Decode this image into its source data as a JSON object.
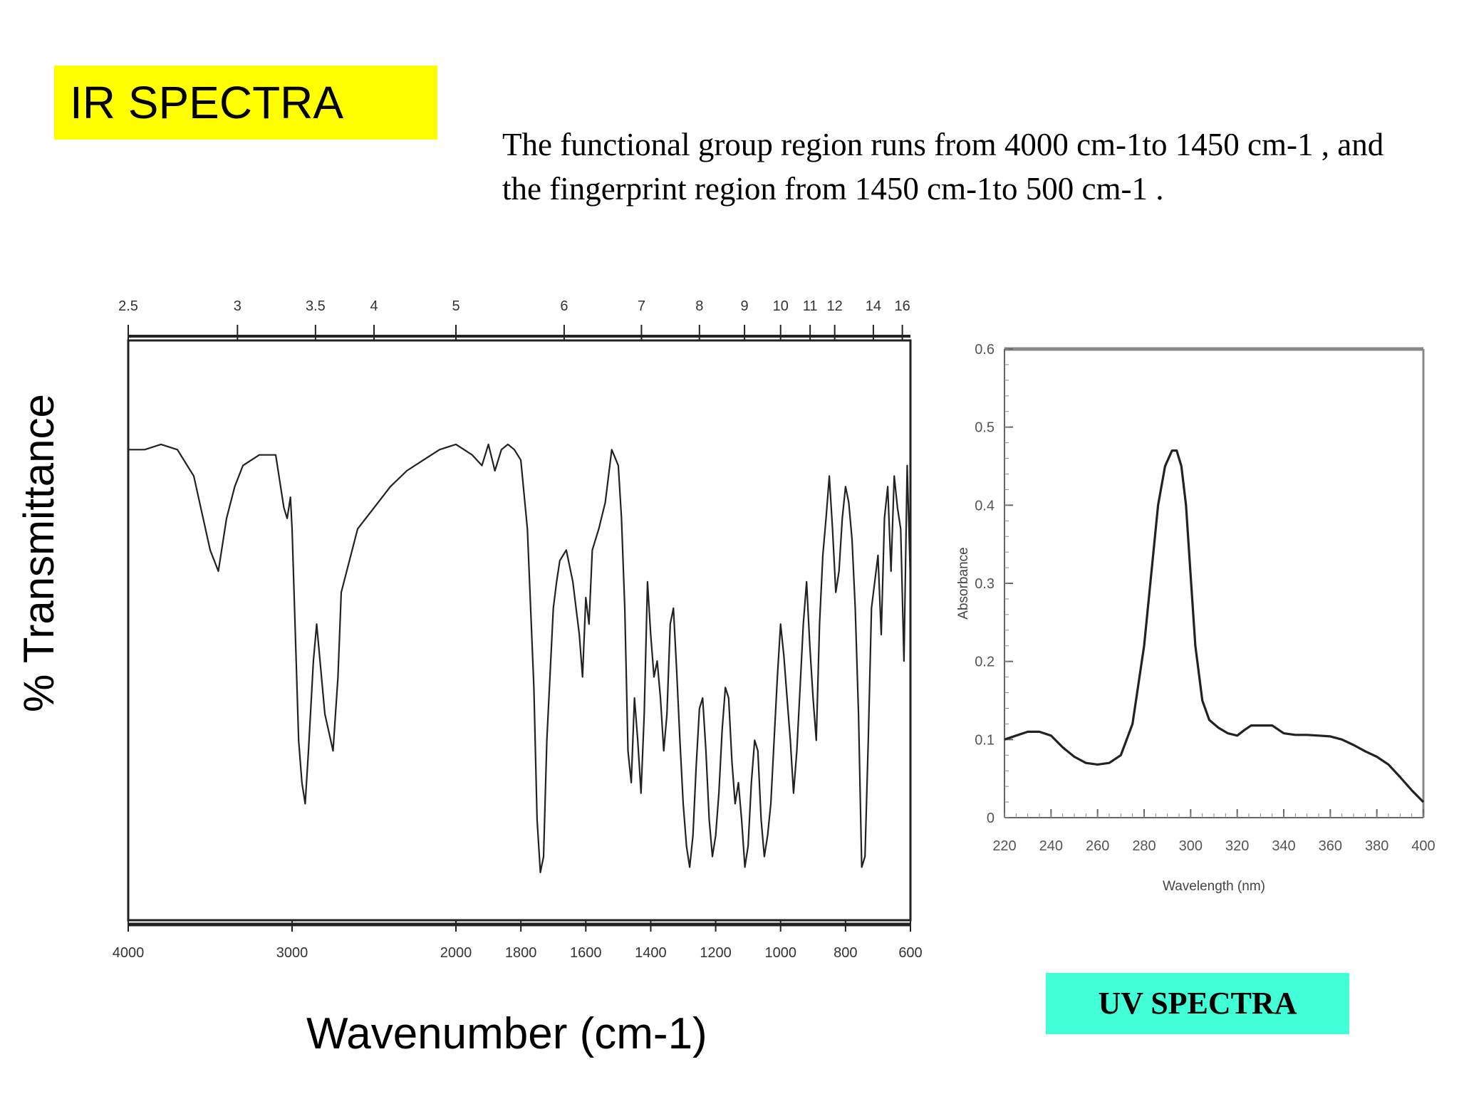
{
  "header": {
    "title": "IR SPECTRA"
  },
  "description": "The functional group region runs from 4000 cm-1to 1450 cm-1 , and the fingerprint region from 1450 cm-1to 500 cm-1 .",
  "uv_label": "UV SPECTRA",
  "colors": {
    "title_bg": "#ffff00",
    "uv_label_bg": "#41ffd6",
    "trace": "#222222"
  },
  "chart_data": [
    {
      "type": "line",
      "title": "",
      "xlabel": "Wavenumber (cm-1)",
      "ylabel": "% Transmittance",
      "x_ticks": [
        "4000",
        "3000",
        "2000",
        "1800",
        "1600",
        "1400",
        "1200",
        "1000",
        "800",
        "600"
      ],
      "top_ticks": [
        "2.5",
        "3",
        "3.5",
        "4",
        "5",
        "6",
        "7",
        "8",
        "9",
        "10",
        "11",
        "12",
        "14",
        "16"
      ],
      "grid": false,
      "series": [
        {
          "x": [
            4000,
            3900,
            3800,
            3700,
            3600,
            3500,
            3450,
            3400,
            3350,
            3300,
            3200,
            3100,
            3050,
            3030,
            3010,
            3000,
            2980,
            2960,
            2940,
            2920,
            2900,
            2870,
            2850,
            2800,
            2750,
            2720,
            2700,
            2650,
            2600,
            2500,
            2400,
            2300,
            2200,
            2100,
            2000,
            1950,
            1920,
            1900,
            1880,
            1860,
            1840,
            1820,
            1800,
            1780,
            1760,
            1750,
            1740,
            1730,
            1720,
            1700,
            1690,
            1680,
            1660,
            1640,
            1630,
            1620,
            1610,
            1600,
            1590,
            1580,
            1560,
            1540,
            1520,
            1500,
            1490,
            1480,
            1470,
            1460,
            1450,
            1440,
            1430,
            1420,
            1410,
            1400,
            1390,
            1380,
            1370,
            1360,
            1350,
            1340,
            1330,
            1320,
            1310,
            1300,
            1290,
            1280,
            1270,
            1260,
            1250,
            1240,
            1230,
            1220,
            1210,
            1200,
            1190,
            1180,
            1170,
            1160,
            1150,
            1140,
            1130,
            1120,
            1110,
            1100,
            1090,
            1080,
            1070,
            1060,
            1050,
            1040,
            1030,
            1020,
            1010,
            1000,
            990,
            980,
            970,
            960,
            950,
            940,
            930,
            920,
            910,
            900,
            890,
            880,
            870,
            860,
            850,
            840,
            830,
            820,
            810,
            800,
            790,
            780,
            770,
            760,
            750,
            740,
            730,
            720,
            710,
            700,
            690,
            680,
            670,
            660,
            650,
            640,
            630,
            620,
            610,
            600
          ],
          "y": [
            85,
            85,
            86,
            85,
            80,
            66,
            62,
            72,
            78,
            82,
            84,
            84,
            74,
            72,
            76,
            70,
            50,
            30,
            22,
            18,
            28,
            45,
            52,
            35,
            28,
            42,
            58,
            64,
            70,
            74,
            78,
            81,
            83,
            85,
            86,
            84,
            82,
            86,
            81,
            85,
            86,
            85,
            83,
            70,
            40,
            15,
            5,
            8,
            30,
            55,
            60,
            64,
            66,
            60,
            55,
            50,
            42,
            57,
            52,
            66,
            70,
            75,
            85,
            82,
            72,
            55,
            28,
            22,
            38,
            30,
            20,
            35,
            60,
            50,
            42,
            45,
            38,
            28,
            35,
            52,
            55,
            43,
            30,
            18,
            10,
            6,
            12,
            25,
            36,
            38,
            28,
            15,
            8,
            12,
            20,
            32,
            40,
            38,
            26,
            18,
            22,
            15,
            6,
            10,
            22,
            30,
            28,
            15,
            8,
            12,
            18,
            30,
            42,
            52,
            46,
            38,
            30,
            20,
            28,
            40,
            52,
            60,
            48,
            38,
            30,
            52,
            65,
            72,
            80,
            70,
            58,
            62,
            72,
            78,
            75,
            68,
            55,
            35,
            6,
            8,
            30,
            55,
            60,
            65,
            50,
            72,
            78,
            62,
            80,
            74,
            70,
            45,
            82,
            60
          ],
          "ylim": [
            0,
            100
          ]
        }
      ]
    },
    {
      "type": "line",
      "title": "",
      "xlabel": "Wavelength (nm)",
      "ylabel": "Absorbance",
      "xlim": [
        220,
        400
      ],
      "ylim": [
        0,
        0.6
      ],
      "x_ticks": [
        "220",
        "240",
        "260",
        "280",
        "300",
        "320",
        "340",
        "360",
        "380",
        "400"
      ],
      "y_ticks": [
        "0",
        "0.1",
        "0.2",
        "0.3",
        "0.4",
        "0.5",
        "0.6"
      ],
      "grid": false,
      "series": [
        {
          "x": [
            220,
            225,
            230,
            235,
            240,
            245,
            250,
            255,
            260,
            265,
            270,
            275,
            280,
            283,
            286,
            289,
            292,
            294,
            296,
            298,
            300,
            302,
            305,
            308,
            312,
            316,
            320,
            323,
            326,
            330,
            335,
            340,
            345,
            350,
            355,
            360,
            365,
            370,
            375,
            380,
            385,
            390,
            395,
            400
          ],
          "y": [
            0.1,
            0.105,
            0.11,
            0.11,
            0.105,
            0.09,
            0.078,
            0.07,
            0.068,
            0.07,
            0.08,
            0.12,
            0.22,
            0.31,
            0.4,
            0.45,
            0.47,
            0.47,
            0.45,
            0.4,
            0.31,
            0.22,
            0.15,
            0.125,
            0.115,
            0.108,
            0.105,
            0.112,
            0.118,
            0.118,
            0.118,
            0.108,
            0.106,
            0.106,
            0.105,
            0.104,
            0.1,
            0.093,
            0.085,
            0.078,
            0.068,
            0.052,
            0.035,
            0.02
          ]
        }
      ]
    }
  ]
}
